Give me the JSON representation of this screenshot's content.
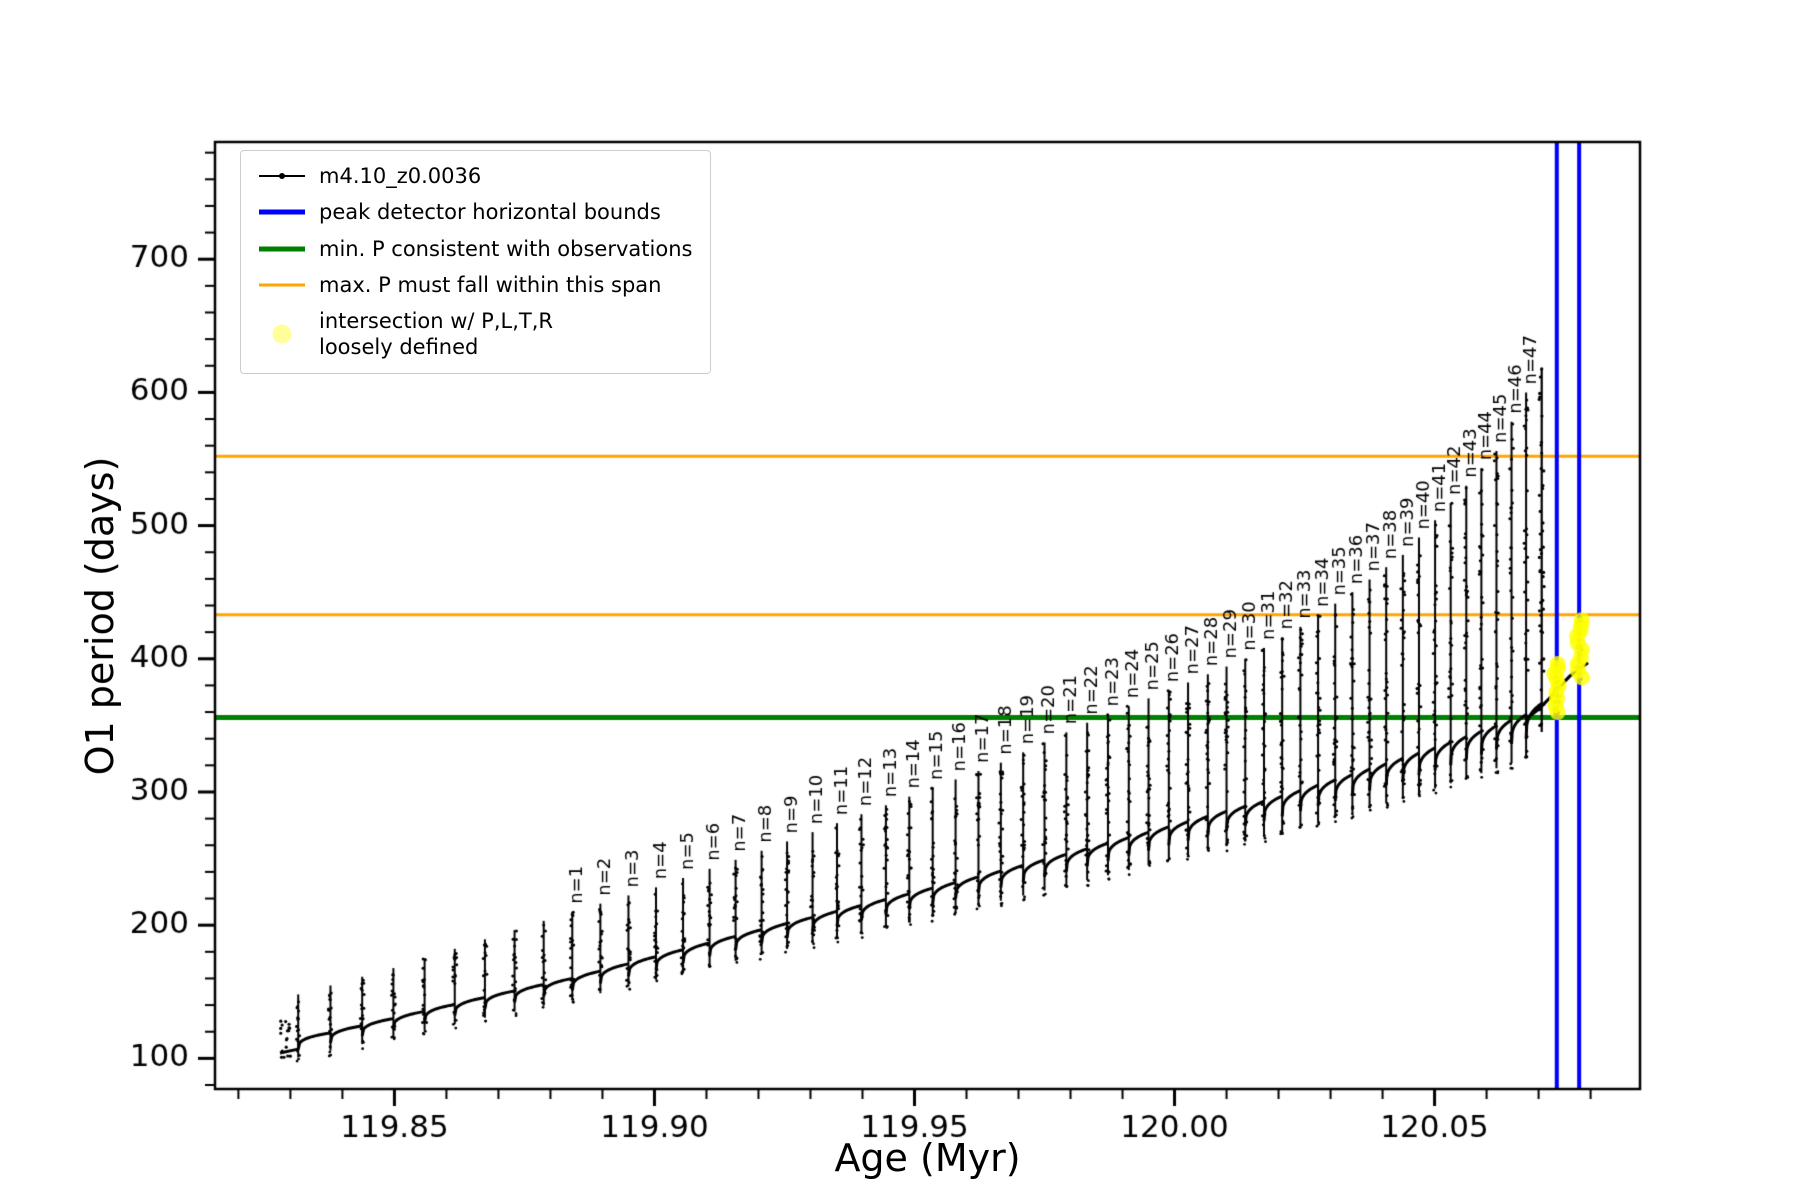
{
  "legend": {
    "items": [
      {
        "label": "m4.10_z0.0036",
        "type": "line-dot",
        "color": "#000000"
      },
      {
        "label": "peak detector horizontal bounds",
        "type": "line",
        "color": "#0000ff"
      },
      {
        "label": "min. P consistent with observations",
        "type": "line",
        "color": "#008000"
      },
      {
        "label": "max. P must fall within this span",
        "type": "line",
        "color": "#ffa500"
      },
      {
        "label": "intersection w/ P,L,T,R\nloosely defined",
        "type": "dot",
        "color": "#ffff99"
      }
    ]
  },
  "chart_data": {
    "type": "line",
    "title": "",
    "xlabel": "Age (Myr)",
    "ylabel": "O1 period (days)",
    "series_name": "m4.10_z0.0036",
    "series_color": "#000000",
    "xlim": [
      119.8155,
      120.0895
    ],
    "ylim": [
      77,
      788
    ],
    "x_major_ticks": [
      119.85,
      119.9,
      119.95,
      120.0,
      120.05
    ],
    "x_tick_labels": [
      "119.85",
      "119.90",
      "119.95",
      "120.00",
      "120.05"
    ],
    "y_major_ticks": [
      100,
      200,
      300,
      400,
      500,
      600,
      700
    ],
    "x_minor_step": 0.01,
    "y_minor_step": 20,
    "hlines": [
      {
        "y": 356,
        "color": "#008000",
        "lw": 5,
        "label": "min. P consistent with observations"
      },
      {
        "y": 433,
        "color": "#ffa500",
        "lw": 3,
        "label": "max. P must fall within this span"
      },
      {
        "y": 552,
        "color": "#ffa500",
        "lw": 3,
        "label": "max. P must fall within this span"
      }
    ],
    "vlines": [
      {
        "x": 120.0735,
        "color": "#0000ff",
        "lw": 4,
        "label": "peak detector horizontal bounds"
      },
      {
        "x": 120.0778,
        "color": "#0000ff",
        "lw": 4,
        "label": "peak detector horizontal bounds"
      }
    ],
    "pulse_times": [
      119.8315,
      119.8377,
      119.8438,
      119.8498,
      119.8558,
      119.8616,
      119.8674,
      119.8731,
      119.8787,
      119.8842,
      119.8896,
      119.895,
      119.9003,
      119.9055,
      119.9106,
      119.9156,
      119.9206,
      119.9255,
      119.9304,
      119.9351,
      119.9398,
      119.9445,
      119.949,
      119.9535,
      119.9579,
      119.9623,
      119.9666,
      119.9709,
      119.975,
      119.9792,
      119.9832,
      119.9872,
      119.9912,
      119.995,
      119.9989,
      120.0026,
      120.0064,
      120.01,
      120.0136,
      120.0172,
      120.0207,
      120.0242,
      120.0276,
      120.0309,
      120.0342,
      120.0375,
      120.0407,
      120.0439,
      120.047,
      120.0501,
      120.0531,
      120.0561,
      120.059,
      120.0619,
      120.0648,
      120.0676
    ],
    "pulse_label_start_index": 9,
    "pulse_label_prefix": "n=",
    "pulse_label_max": 47,
    "baseline_points": [
      [
        119.828,
        107
      ],
      [
        119.84,
        117
      ],
      [
        119.85,
        126
      ],
      [
        119.86,
        135
      ],
      [
        119.87,
        144
      ],
      [
        119.8842,
        156
      ],
      [
        119.9,
        172
      ],
      [
        119.92,
        192
      ],
      [
        119.94,
        211
      ],
      [
        119.96,
        230
      ],
      [
        119.98,
        250
      ],
      [
        120.0,
        271
      ],
      [
        120.02,
        292
      ],
      [
        120.035,
        310
      ],
      [
        120.05,
        329
      ],
      [
        120.06,
        343
      ],
      [
        120.0676,
        354
      ],
      [
        120.074,
        372
      ],
      [
        120.0795,
        393
      ]
    ],
    "envelope_points": [
      [
        119.8315,
        148
      ],
      [
        119.85,
        168
      ],
      [
        119.8842,
        210
      ],
      [
        119.9,
        228
      ],
      [
        119.92,
        255
      ],
      [
        119.9445,
        290
      ],
      [
        119.9666,
        322
      ],
      [
        119.9832,
        352
      ],
      [
        120.0,
        378
      ],
      [
        120.0136,
        400
      ],
      [
        120.0242,
        424
      ],
      [
        120.0342,
        450
      ],
      [
        120.0439,
        478
      ],
      [
        120.0501,
        504
      ],
      [
        120.0561,
        530
      ],
      [
        120.0619,
        556
      ],
      [
        120.0648,
        578
      ],
      [
        120.0676,
        600
      ],
      [
        120.0706,
        618
      ]
    ],
    "final_spike": {
      "x": 120.0706,
      "y_bottom": 345,
      "y_top": 618
    },
    "tail_points": [
      [
        120.0676,
        355
      ],
      [
        120.07,
        362
      ],
      [
        120.072,
        370
      ],
      [
        120.074,
        379
      ],
      [
        120.076,
        387
      ],
      [
        120.078,
        393
      ],
      [
        120.0795,
        397
      ]
    ],
    "scatter_columns": [
      {
        "x": 120.0735,
        "y_min": 356,
        "y_max": 398
      },
      {
        "x": 120.0778,
        "y_min": 384,
        "y_max": 432
      }
    ],
    "yellow_clusters": [
      {
        "x": 120.0735,
        "y_values": [
          360,
          365,
          370,
          375,
          380,
          385,
          389,
          393,
          396
        ]
      },
      {
        "x": 120.0778,
        "y_values": [
          386,
          391,
          396,
          401,
          407,
          412,
          417,
          421,
          425,
          429
        ]
      }
    ],
    "yellow_color": "rgba(255,255,0,0.8)"
  }
}
